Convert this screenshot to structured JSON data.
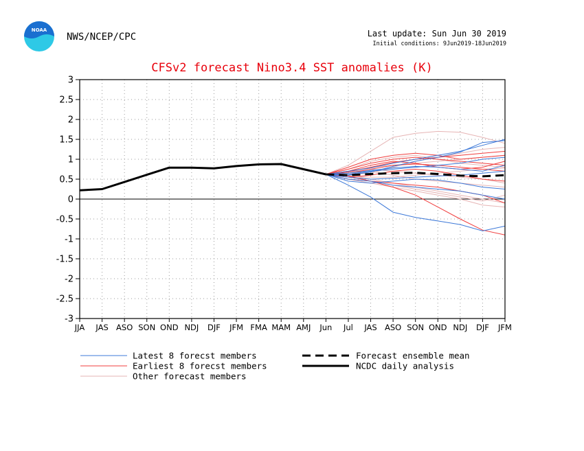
{
  "header": {
    "org": "NWS/NCEP/CPC",
    "logo_text": "NOAA",
    "last_update": "Last update: Sun Jun 30 2019",
    "initial_conditions": "Initial conditions: 9Jun2019-18Jun2019"
  },
  "colors": {
    "title": "#e8000b",
    "latest": "#3c78d8",
    "earliest": "#f03c3c",
    "other": "#e6b4b4",
    "analysis": "#000000",
    "logo_blue": "#1a6fd0",
    "logo_cyan": "#2ec9e6"
  },
  "chart_data": {
    "type": "line",
    "title": "CFSv2 forecast Nino3.4 SST anomalies (K)",
    "xlabel": "",
    "ylabel": "",
    "ylim": [
      -3,
      3
    ],
    "yticks": [
      3,
      2.5,
      2,
      1.5,
      1,
      0.5,
      0,
      -0.5,
      -1,
      -1.5,
      -2,
      -2.5,
      -3
    ],
    "categories": [
      "JJA",
      "JAS",
      "ASO",
      "SON",
      "OND",
      "NDJ",
      "DJF",
      "JFM",
      "FMA",
      "MAM",
      "AMJ",
      "Jun",
      "Jul",
      "JAS",
      "ASO",
      "SON",
      "OND",
      "NDJ",
      "DJF",
      "JFM"
    ],
    "grid": true,
    "legend_position": "bottom",
    "legend": [
      {
        "label": "Latest 8 forecst members",
        "style": "latest"
      },
      {
        "label": "Earliest 8 forecst members",
        "style": "earliest"
      },
      {
        "label": "Other forecast members",
        "style": "other"
      },
      {
        "label": "Forecast ensemble mean",
        "style": "mean"
      },
      {
        "label": "NCDC daily analysis",
        "style": "analysis"
      }
    ],
    "analysis": {
      "name": "NCDC daily analysis",
      "x_start": 0,
      "values": [
        0.22,
        0.25,
        0.43,
        0.61,
        0.79,
        0.79,
        0.77,
        0.83,
        0.87,
        0.88,
        0.75,
        0.62
      ]
    },
    "ensemble_mean": {
      "name": "Forecast ensemble mean",
      "x_start": 11,
      "values": [
        0.62,
        0.6,
        0.63,
        0.65,
        0.66,
        0.63,
        0.59,
        0.57,
        0.6
      ]
    },
    "member_groups": [
      {
        "name": "Latest 8 forecst members",
        "style": "latest",
        "x_start": 11,
        "members": [
          [
            0.62,
            0.35,
            0.05,
            -0.33,
            -0.46,
            -0.55,
            -0.64,
            -0.8,
            -0.68
          ],
          [
            0.62,
            0.6,
            0.68,
            0.82,
            0.95,
            1.05,
            1.18,
            1.42,
            1.47
          ],
          [
            0.62,
            0.7,
            0.78,
            0.9,
            1.0,
            1.1,
            1.2,
            1.35,
            1.5
          ],
          [
            0.62,
            0.5,
            0.45,
            0.35,
            0.3,
            0.25,
            0.2,
            0.1,
            0.0
          ],
          [
            0.62,
            0.62,
            0.7,
            0.75,
            0.8,
            0.85,
            0.9,
            1.0,
            1.05
          ],
          [
            0.62,
            0.55,
            0.5,
            0.52,
            0.55,
            0.58,
            0.6,
            0.65,
            0.7
          ],
          [
            0.62,
            0.45,
            0.4,
            0.45,
            0.5,
            0.48,
            0.4,
            0.3,
            0.25
          ],
          [
            0.62,
            0.65,
            0.72,
            0.78,
            0.82,
            0.8,
            0.75,
            0.7,
            0.85
          ]
        ]
      },
      {
        "name": "Earliest 8 forecst members",
        "style": "earliest",
        "x_start": 11,
        "members": [
          [
            0.62,
            0.8,
            1.0,
            1.1,
            1.15,
            1.1,
            1.0,
            1.05,
            1.1
          ],
          [
            0.62,
            0.58,
            0.45,
            0.3,
            0.1,
            -0.2,
            -0.5,
            -0.78,
            -0.9
          ],
          [
            0.62,
            0.75,
            0.9,
            1.0,
            1.05,
            1.0,
            0.95,
            0.9,
            0.85
          ],
          [
            0.62,
            0.7,
            0.85,
            0.95,
            0.9,
            0.8,
            0.75,
            0.8,
            0.95
          ],
          [
            0.62,
            0.55,
            0.6,
            0.7,
            0.75,
            0.7,
            0.6,
            0.5,
            0.45
          ],
          [
            0.62,
            0.65,
            0.75,
            0.85,
            0.88,
            0.85,
            0.8,
            0.75,
            0.7
          ],
          [
            0.62,
            0.5,
            0.45,
            0.4,
            0.35,
            0.3,
            0.2,
            0.1,
            -0.1
          ],
          [
            0.62,
            0.68,
            0.8,
            0.92,
            1.0,
            1.05,
            1.1,
            1.15,
            1.2
          ]
        ]
      },
      {
        "name": "Other forecast members",
        "style": "other",
        "x_start": 11,
        "members": [
          [
            0.62,
            0.85,
            1.2,
            1.55,
            1.65,
            1.7,
            1.68,
            1.55,
            1.4
          ],
          [
            0.62,
            0.6,
            0.5,
            0.4,
            0.3,
            0.2,
            0.1,
            0.0,
            -0.1
          ],
          [
            0.62,
            0.7,
            0.8,
            0.85,
            0.9,
            0.95,
            1.0,
            1.05,
            1.1
          ],
          [
            0.62,
            0.55,
            0.45,
            0.35,
            0.25,
            0.15,
            0.05,
            -0.05,
            0.1
          ],
          [
            0.62,
            0.65,
            0.7,
            0.6,
            0.5,
            0.45,
            0.4,
            0.35,
            0.3
          ],
          [
            0.62,
            0.75,
            0.95,
            1.05,
            1.1,
            1.0,
            0.9,
            0.85,
            0.8
          ],
          [
            0.62,
            0.58,
            0.55,
            0.55,
            0.6,
            0.65,
            0.7,
            0.75,
            0.78
          ],
          [
            0.62,
            0.5,
            0.4,
            0.3,
            0.2,
            0.1,
            0.0,
            -0.15,
            -0.2
          ],
          [
            0.62,
            0.68,
            0.75,
            0.7,
            0.65,
            0.6,
            0.55,
            0.5,
            0.4
          ],
          [
            0.62,
            0.62,
            0.65,
            0.8,
            0.95,
            1.05,
            1.15,
            1.25,
            1.3
          ]
        ]
      }
    ]
  }
}
